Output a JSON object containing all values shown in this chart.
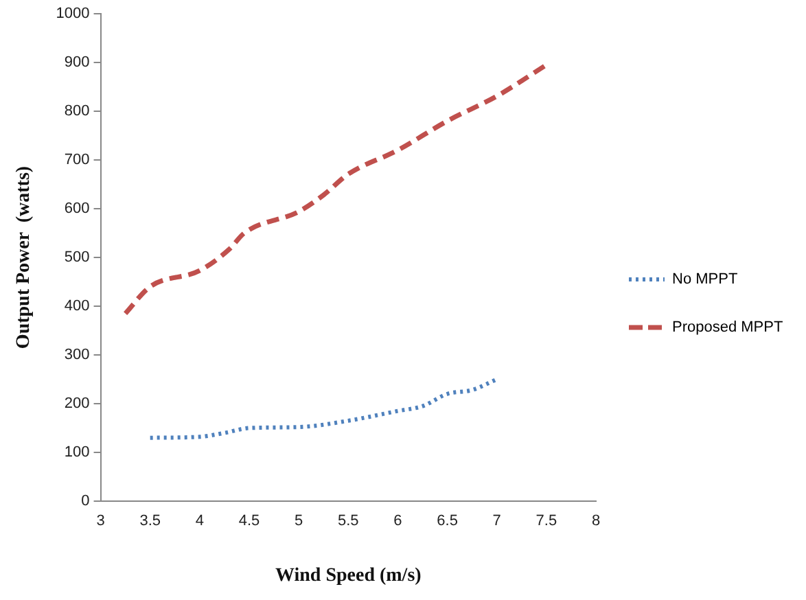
{
  "chart_data": {
    "type": "line",
    "xlabel": "Wind Speed (m/s)",
    "ylabel": "Output Power  (watts)",
    "xlim": [
      3,
      8
    ],
    "xticks": [
      3,
      3.5,
      4,
      4.5,
      5,
      5.5,
      6,
      6.5,
      7,
      7.5,
      8
    ],
    "ylim": [
      0,
      1000
    ],
    "yticks": [
      0,
      100,
      200,
      300,
      400,
      500,
      600,
      700,
      800,
      900,
      1000
    ],
    "grid": false,
    "legend": "right",
    "marker": "none",
    "series": [
      {
        "name": "No MPPT",
        "color": "#4f81bd",
        "line_style": "dotted",
        "x": [
          3.5,
          4,
          4.25,
          4.5,
          5,
          5.5,
          6,
          6.25,
          6.5,
          6.75,
          7
        ],
        "values": [
          130,
          132,
          140,
          150,
          152,
          165,
          185,
          195,
          220,
          228,
          250
        ]
      },
      {
        "name": "Proposed MPPT",
        "color": "#c0504d",
        "line_style": "dashed",
        "x": [
          3.25,
          3.5,
          4,
          4.3,
          4.45,
          5,
          5.25,
          5.5,
          6,
          6.5,
          7,
          7.5
        ],
        "values": [
          385,
          440,
          473,
          517,
          550,
          594,
          628,
          671,
          720,
          780,
          831,
          895
        ]
      }
    ]
  }
}
